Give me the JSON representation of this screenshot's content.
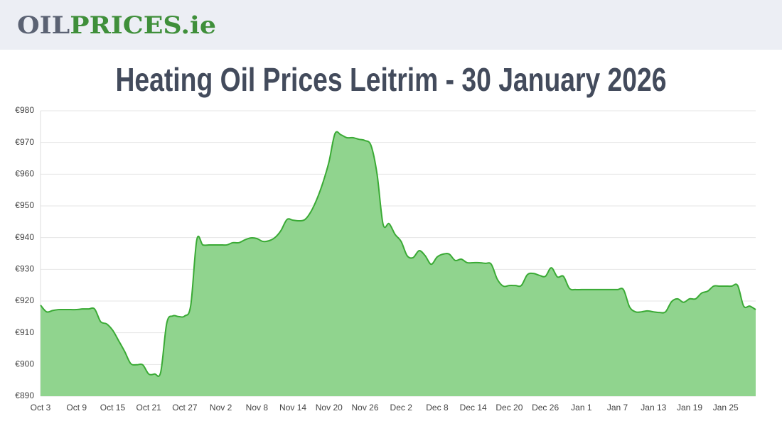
{
  "header": {
    "logo": {
      "oil": "OIL",
      "prices": "PRICES",
      "tld": ".ie"
    }
  },
  "chart_data": {
    "type": "area",
    "title": "Heating Oil Prices Leitrim - 30 January 2026",
    "categories": [
      "Oct 3",
      null,
      null,
      null,
      null,
      null,
      "Oct 9",
      null,
      null,
      null,
      null,
      null,
      "Oct 15",
      null,
      null,
      null,
      null,
      null,
      "Oct 21",
      null,
      null,
      null,
      null,
      null,
      "Oct 27",
      null,
      null,
      null,
      null,
      null,
      "Nov 2",
      null,
      null,
      null,
      null,
      null,
      "Nov 8",
      null,
      null,
      null,
      null,
      null,
      "Nov 14",
      null,
      null,
      null,
      null,
      null,
      "Nov 20",
      null,
      null,
      null,
      null,
      null,
      "Nov 26",
      null,
      null,
      null,
      null,
      null,
      "Dec 2",
      null,
      null,
      null,
      null,
      null,
      "Dec 8",
      null,
      null,
      null,
      null,
      null,
      "Dec 14",
      null,
      null,
      null,
      null,
      null,
      "Dec 20",
      null,
      null,
      null,
      null,
      null,
      "Dec 26",
      null,
      null,
      null,
      null,
      null,
      "Jan 1",
      null,
      null,
      null,
      null,
      null,
      "Jan 7",
      null,
      null,
      null,
      null,
      null,
      "Jan 13",
      null,
      null,
      null,
      null,
      null,
      "Jan 19",
      null,
      null,
      null,
      null,
      null,
      "Jan 25",
      null,
      null,
      null,
      null,
      null
    ],
    "values": [
      918.7,
      916.6,
      917,
      917.3,
      917.3,
      917.3,
      917.3,
      917.5,
      917.5,
      917.5,
      913.5,
      912.8,
      910.8,
      907.5,
      904.1,
      900.3,
      899.9,
      899.9,
      897,
      897,
      897.6,
      913,
      915.3,
      915.1,
      915.3,
      918.7,
      939.3,
      937.7,
      937.7,
      937.7,
      937.7,
      937.7,
      938.4,
      938.4,
      939.3,
      939.9,
      939.7,
      938.8,
      939,
      940,
      942.2,
      945.7,
      945.5,
      945.3,
      945.7,
      948.2,
      952.2,
      957.4,
      963.9,
      972.8,
      972.4,
      971.5,
      971.5,
      971,
      970.6,
      969,
      960,
      944.2,
      944.4,
      941,
      938.8,
      934.3,
      933.7,
      935.9,
      934.3,
      931.6,
      933.9,
      934.8,
      934.8,
      932.8,
      933.2,
      932.1,
      932.1,
      932.1,
      931.9,
      931.6,
      926.9,
      924.7,
      924.9,
      924.9,
      924.9,
      928.3,
      928.7,
      928.1,
      927.8,
      930.5,
      927.6,
      927.8,
      924,
      923.6,
      923.6,
      923.6,
      923.6,
      923.6,
      923.6,
      923.6,
      923.6,
      923.6,
      918.2,
      916.6,
      916.6,
      916.9,
      916.6,
      916.4,
      916.6,
      919.8,
      920.7,
      919.6,
      920.7,
      920.7,
      922.5,
      923.1,
      924.7,
      924.7,
      924.7,
      924.7,
      924.9,
      918.4,
      918.4,
      917.3
    ],
    "color": "#3aaa35",
    "fill": "#90d48e",
    "ylim": [
      890,
      980
    ],
    "yticks": [
      {
        "value": 890,
        "label": "€890"
      },
      {
        "value": 900,
        "label": "€900"
      },
      {
        "value": 910,
        "label": "€910"
      },
      {
        "value": 920,
        "label": "€920"
      },
      {
        "value": 930,
        "label": "€930"
      },
      {
        "value": 940,
        "label": "€940"
      },
      {
        "value": 950,
        "label": "€950"
      },
      {
        "value": 960,
        "label": "€960"
      },
      {
        "value": 970,
        "label": "€970"
      },
      {
        "value": 980,
        "label": "€980"
      }
    ],
    "grid": true
  }
}
